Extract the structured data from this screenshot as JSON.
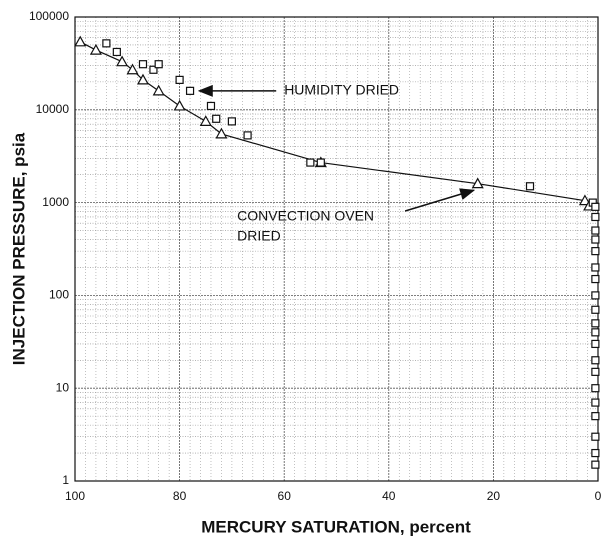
{
  "chart_data": {
    "type": "scatter",
    "xlabel": "MERCURY SATURATION, percent",
    "ylabel": "INJECTION PRESSURE, psia",
    "xlim": [
      100,
      0
    ],
    "xticks": [
      100,
      80,
      60,
      40,
      20,
      0
    ],
    "ylim": [
      1,
      100000
    ],
    "yticks": [
      1,
      10,
      100,
      1000,
      10000,
      100000
    ],
    "log_y": true,
    "grid": true,
    "minor_grid": true,
    "series": [
      {
        "marker": "triangle",
        "line": true,
        "color": "#111111",
        "x": [
          99,
          96,
          91,
          89,
          87,
          84,
          80,
          75,
          72,
          53,
          23,
          2.5,
          1.7
        ],
        "values": [
          54000,
          44000,
          33000,
          27000,
          21000,
          16000,
          11000,
          7500,
          5500,
          2700,
          1600,
          1050,
          920
        ]
      },
      {
        "marker": "square",
        "line": false,
        "color": "#111111",
        "x": [
          94,
          92,
          87,
          85,
          84,
          80,
          78,
          74,
          73,
          70,
          67,
          55,
          53,
          13,
          1,
          0.5,
          0.5,
          0.5,
          0.5,
          0.5,
          0.5,
          0.5,
          0.5,
          0.5,
          0.5,
          0.5,
          0.5,
          0.5,
          0.5,
          0.5,
          0.5,
          0.5,
          0.5,
          0.5,
          0.5
        ],
        "values": [
          52000,
          42000,
          31000,
          27000,
          31000,
          21000,
          16000,
          11000,
          8000,
          7500,
          5300,
          2700,
          2700,
          1500,
          1000,
          900,
          700,
          500,
          400,
          300,
          200,
          150,
          100,
          70,
          50,
          40,
          30,
          20,
          15,
          10,
          7,
          5,
          3,
          2,
          1.5
        ]
      }
    ],
    "annotations": [
      {
        "lines": [
          "HUMIDITY DRIED"
        ],
        "x": 60,
        "y": 16000,
        "arrow_x": 77,
        "arrow_y": 16000
      },
      {
        "lines": [
          "CONVECTION OVEN",
          "DRIED"
        ],
        "x": 69,
        "y": 700,
        "arrow_x": 23,
        "arrow_y": 1500
      }
    ]
  }
}
